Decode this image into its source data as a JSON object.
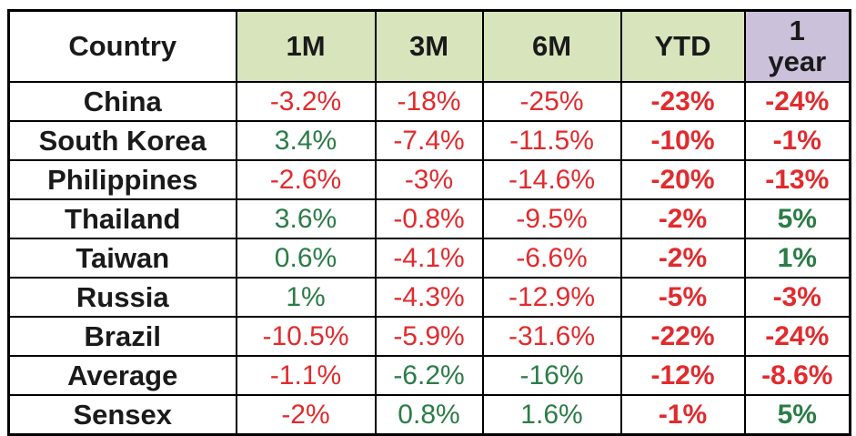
{
  "palette": {
    "negative_red": "#E12B2E",
    "positive_green": "#2B7C47",
    "header_green_bg": "#D8E4BC",
    "header_purple_bg": "#CCC1DA",
    "border_black": "#000000",
    "text_black": "#1A1A1A"
  },
  "chart_data": {
    "type": "table",
    "title": "",
    "columns": [
      "Country",
      "1M",
      "3M",
      "6M",
      "YTD",
      "1\nyear"
    ],
    "rows": [
      {
        "country": "China",
        "values": [
          "-3.2%",
          "-18%",
          "-25%",
          "-23%",
          "-24%"
        ],
        "tones": [
          "red",
          "red",
          "red",
          "red",
          "red"
        ]
      },
      {
        "country": "South Korea",
        "values": [
          "3.4%",
          "-7.4%",
          "-11.5%",
          "-10%",
          "-1%"
        ],
        "tones": [
          "green",
          "red",
          "red",
          "red",
          "red"
        ]
      },
      {
        "country": "Philippines",
        "values": [
          "-2.6%",
          "-3%",
          "-14.6%",
          "-20%",
          "-13%"
        ],
        "tones": [
          "red",
          "red",
          "red",
          "red",
          "red"
        ]
      },
      {
        "country": "Thailand",
        "values": [
          "3.6%",
          "-0.8%",
          "-9.5%",
          "-2%",
          "5%"
        ],
        "tones": [
          "green",
          "red",
          "red",
          "red",
          "green"
        ]
      },
      {
        "country": "Taiwan",
        "values": [
          "0.6%",
          "-4.1%",
          "-6.6%",
          "-2%",
          "1%"
        ],
        "tones": [
          "green",
          "red",
          "red",
          "red",
          "green"
        ]
      },
      {
        "country": "Russia",
        "values": [
          "1%",
          "-4.3%",
          "-12.9%",
          "-5%",
          "-3%"
        ],
        "tones": [
          "green",
          "red",
          "red",
          "red",
          "red"
        ]
      },
      {
        "country": "Brazil",
        "values": [
          "-10.5%",
          "-5.9%",
          "-31.6%",
          "-22%",
          "-24%"
        ],
        "tones": [
          "red",
          "red",
          "red",
          "red",
          "red"
        ]
      },
      {
        "country": "Average",
        "values": [
          "-1.1%",
          "-6.2%",
          "-16%",
          "-12%",
          "-8.6%"
        ],
        "tones": [
          "red",
          "green",
          "green",
          "red",
          "red"
        ]
      },
      {
        "country": "Sensex",
        "values": [
          "-2%",
          "0.8%",
          "1.6%",
          "-1%",
          "5%"
        ],
        "tones": [
          "red",
          "green",
          "green",
          "red",
          "green"
        ]
      }
    ]
  }
}
